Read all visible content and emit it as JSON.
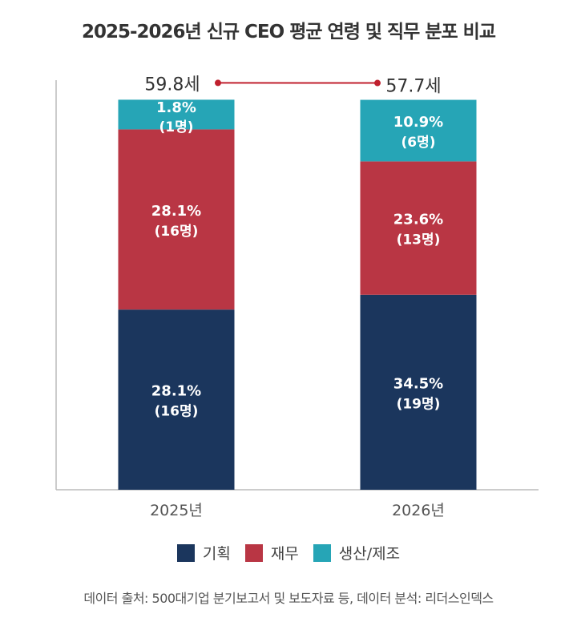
{
  "chart_data": {
    "type": "bar",
    "stacked": true,
    "title": "2025-2026년 신규 CEO 평균 연령 및 직무 분포 비교",
    "categories": [
      "2025년",
      "2026년"
    ],
    "series": [
      {
        "name": "기획",
        "color": "#1b365d",
        "values": [
          28.1,
          34.5
        ],
        "labels": [
          "28.1%",
          "34.5%"
        ],
        "counts": [
          "(16명)",
          "(19명)"
        ]
      },
      {
        "name": "재무",
        "color": "#b93644",
        "values": [
          28.1,
          23.6
        ],
        "labels": [
          "28.1%",
          "23.6%"
        ],
        "counts": [
          "(16명)",
          "(13명)"
        ]
      },
      {
        "name": "생산/제조",
        "color": "#26a5b6",
        "values": [
          1.8,
          10.9
        ],
        "labels": [
          "1.8%",
          "10.9%"
        ],
        "counts": [
          "(1명)",
          "(6명)"
        ]
      }
    ],
    "average_age": {
      "values": [
        59.8,
        57.7
      ],
      "labels": [
        "59.8세",
        "57.7세"
      ],
      "color": "#c0202e"
    },
    "legend_position": "bottom",
    "grid": false,
    "source": "데이터 출처: 500대기업 분기보고서 및 보도자료 등, 데이터 분석: 리더스인덱스"
  }
}
